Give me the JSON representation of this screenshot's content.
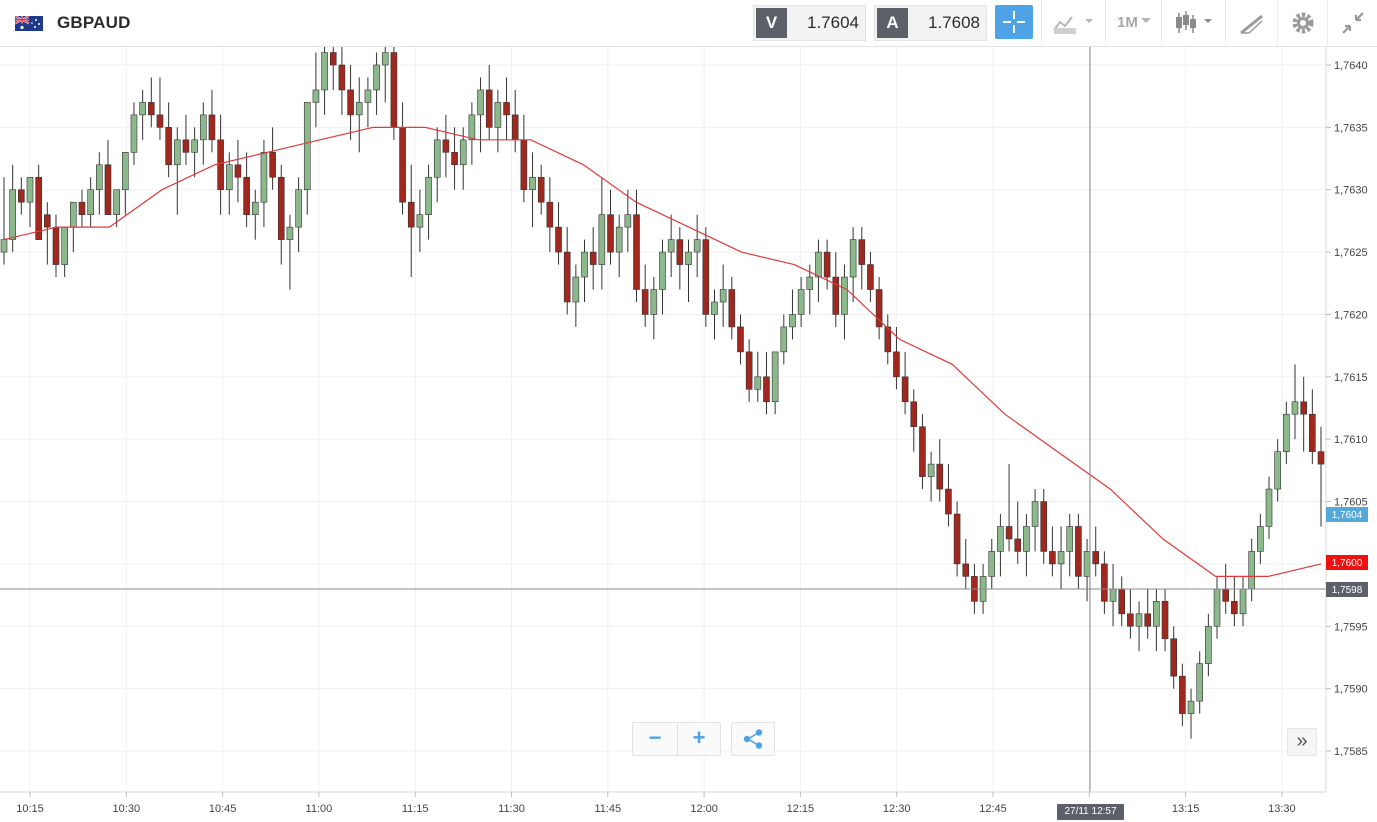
{
  "instrument": {
    "symbol": "GBPAUD",
    "flag_icon": "uk-australia-flag-icon"
  },
  "quote": {
    "sell_label": "V",
    "sell_price": "1.7604",
    "buy_label": "A",
    "buy_price": "1.7608"
  },
  "toolbar": {
    "crosshair_icon": "crosshair-icon",
    "chart_type_icon": "line-chart-icon",
    "timeframe": "1M",
    "candles_icon": "candlestick-icon",
    "draw_icon": "drawing-tools-icon",
    "settings_icon": "gear-icon",
    "collapse_icon": "collapse-icon"
  },
  "zoom": {
    "out_label": "−",
    "in_label": "+",
    "share_icon": "share-icon"
  },
  "expand_label": "»",
  "crosshair": {
    "date_label": "27/11 12:57",
    "price_label": "1,7598"
  },
  "badges": {
    "bid": "1,7604",
    "sma": "1,7600"
  },
  "colors": {
    "up": "#8cb98c",
    "down": "#a0281e",
    "sma": "#e03a3a",
    "bid_badge": "#56a8db",
    "sma_badge": "#ee1111",
    "cross_badge": "#5d6068"
  },
  "chart_data": {
    "type": "candlestick",
    "symbol": "GBPAUD",
    "interval": "1M",
    "y_ticks": [
      "1,7585",
      "1,7590",
      "1,7595",
      "1,7600",
      "1,7605",
      "1,7610",
      "1,7615",
      "1,7620",
      "1,7625",
      "1,7630",
      "1,7635",
      "1,7640"
    ],
    "x_ticks": [
      "10:15",
      "10:30",
      "10:45",
      "11:00",
      "11:15",
      "11:30",
      "11:45",
      "12:00",
      "12:15",
      "12:30",
      "12:45",
      "13:00",
      "13:15",
      "13:30"
    ],
    "ylim": [
      1.7582,
      1.7642
    ],
    "candles_approx_ohlc": [
      [
        1.7625,
        1.7631,
        1.7624,
        1.7626
      ],
      [
        1.7626,
        1.7632,
        1.7625,
        1.763
      ],
      [
        1.763,
        1.7631,
        1.7628,
        1.7629
      ],
      [
        1.7629,
        1.763,
        1.7627,
        1.7631
      ],
      [
        1.7631,
        1.7632,
        1.7629,
        1.7626
      ],
      [
        1.7628,
        1.7629,
        1.7624,
        1.7627
      ],
      [
        1.7627,
        1.7628,
        1.7623,
        1.7624
      ],
      [
        1.7624,
        1.7627,
        1.7623,
        1.7627
      ],
      [
        1.7627,
        1.7629,
        1.7625,
        1.7629
      ],
      [
        1.7629,
        1.763,
        1.7627,
        1.7628
      ],
      [
        1.7628,
        1.7631,
        1.7627,
        1.763
      ],
      [
        1.763,
        1.7633,
        1.7628,
        1.7632
      ],
      [
        1.7632,
        1.7634,
        1.763,
        1.7628
      ],
      [
        1.7628,
        1.763,
        1.7627,
        1.763
      ],
      [
        1.763,
        1.7632,
        1.7628,
        1.7633
      ],
      [
        1.7633,
        1.7637,
        1.7632,
        1.7636
      ],
      [
        1.7636,
        1.7638,
        1.7634,
        1.7637
      ],
      [
        1.7637,
        1.7639,
        1.7635,
        1.7636
      ],
      [
        1.7636,
        1.7639,
        1.7634,
        1.7635
      ],
      [
        1.7635,
        1.7637,
        1.7631,
        1.7632
      ],
      [
        1.7632,
        1.7635,
        1.7628,
        1.7634
      ],
      [
        1.7634,
        1.7636,
        1.7632,
        1.7633
      ],
      [
        1.7633,
        1.7635,
        1.7631,
        1.7634
      ],
      [
        1.7634,
        1.7637,
        1.7632,
        1.7636
      ],
      [
        1.7636,
        1.7638,
        1.7633,
        1.7634
      ],
      [
        1.7634,
        1.7636,
        1.7628,
        1.763
      ],
      [
        1.763,
        1.7633,
        1.7628,
        1.7632
      ],
      [
        1.7632,
        1.7634,
        1.7629,
        1.7631
      ],
      [
        1.7631,
        1.7633,
        1.7627,
        1.7628
      ],
      [
        1.7628,
        1.763,
        1.7626,
        1.7629
      ],
      [
        1.7629,
        1.7634,
        1.7627,
        1.7633
      ],
      [
        1.7633,
        1.7635,
        1.763,
        1.7631
      ],
      [
        1.7631,
        1.7632,
        1.7624,
        1.7626
      ],
      [
        1.7626,
        1.7628,
        1.7622,
        1.7627
      ],
      [
        1.7627,
        1.7631,
        1.7625,
        1.763
      ],
      [
        1.763,
        1.7634,
        1.7628,
        1.7637
      ],
      [
        1.7637,
        1.7641,
        1.7635,
        1.7638
      ],
      [
        1.7638,
        1.7642,
        1.7636,
        1.7641
      ],
      [
        1.7641,
        1.7643,
        1.7638,
        1.764
      ],
      [
        1.764,
        1.7642,
        1.7636,
        1.7638
      ],
      [
        1.7638,
        1.764,
        1.7634,
        1.7636
      ],
      [
        1.7636,
        1.7639,
        1.7633,
        1.7637
      ],
      [
        1.7637,
        1.7639,
        1.7635,
        1.7638
      ],
      [
        1.7638,
        1.7641,
        1.7636,
        1.764
      ],
      [
        1.764,
        1.7642,
        1.7637,
        1.7641
      ],
      [
        1.7641,
        1.7642,
        1.7634,
        1.7635
      ],
      [
        1.7635,
        1.7637,
        1.7628,
        1.7629
      ],
      [
        1.7629,
        1.7632,
        1.7623,
        1.7627
      ],
      [
        1.7627,
        1.763,
        1.7625,
        1.7628
      ],
      [
        1.7628,
        1.7632,
        1.7626,
        1.7631
      ],
      [
        1.7631,
        1.7635,
        1.7629,
        1.7634
      ],
      [
        1.7634,
        1.7636,
        1.7631,
        1.7633
      ],
      [
        1.7633,
        1.7635,
        1.763,
        1.7632
      ],
      [
        1.7632,
        1.7635,
        1.763,
        1.7634
      ],
      [
        1.7634,
        1.7637,
        1.7632,
        1.7636
      ],
      [
        1.7636,
        1.7639,
        1.7633,
        1.7638
      ],
      [
        1.7638,
        1.764,
        1.7634,
        1.7635
      ],
      [
        1.7635,
        1.7638,
        1.7633,
        1.7637
      ],
      [
        1.7637,
        1.7639,
        1.7634,
        1.7636
      ],
      [
        1.7636,
        1.7638,
        1.7633,
        1.7634
      ],
      [
        1.7634,
        1.7636,
        1.7629,
        1.763
      ],
      [
        1.763,
        1.7633,
        1.7627,
        1.7631
      ],
      [
        1.7631,
        1.7632,
        1.7628,
        1.7629
      ],
      [
        1.7629,
        1.7631,
        1.7625,
        1.7627
      ],
      [
        1.7627,
        1.7629,
        1.7624,
        1.7625
      ],
      [
        1.7625,
        1.7627,
        1.762,
        1.7621
      ],
      [
        1.7621,
        1.7624,
        1.7619,
        1.7623
      ],
      [
        1.7623,
        1.7626,
        1.7621,
        1.7625
      ],
      [
        1.7625,
        1.7627,
        1.7622,
        1.7624
      ],
      [
        1.7624,
        1.7631,
        1.7622,
        1.7628
      ],
      [
        1.7628,
        1.763,
        1.7624,
        1.7625
      ],
      [
        1.7625,
        1.7628,
        1.7623,
        1.7627
      ],
      [
        1.7627,
        1.763,
        1.7625,
        1.7628
      ],
      [
        1.7628,
        1.763,
        1.7621,
        1.7622
      ],
      [
        1.7622,
        1.7624,
        1.7619,
        1.762
      ],
      [
        1.762,
        1.7623,
        1.7618,
        1.7622
      ],
      [
        1.7622,
        1.7626,
        1.762,
        1.7625
      ],
      [
        1.7625,
        1.7628,
        1.7623,
        1.7626
      ],
      [
        1.7626,
        1.7627,
        1.7622,
        1.7624
      ],
      [
        1.7624,
        1.7626,
        1.7621,
        1.7625
      ],
      [
        1.7625,
        1.7628,
        1.7623,
        1.7626
      ],
      [
        1.7626,
        1.7627,
        1.7619,
        1.762
      ],
      [
        1.762,
        1.7622,
        1.7618,
        1.7621
      ],
      [
        1.7621,
        1.7624,
        1.7619,
        1.7622
      ],
      [
        1.7622,
        1.7623,
        1.7618,
        1.7619
      ],
      [
        1.7619,
        1.762,
        1.7616,
        1.7617
      ],
      [
        1.7617,
        1.7618,
        1.7613,
        1.7614
      ],
      [
        1.7614,
        1.7617,
        1.7613,
        1.7615
      ],
      [
        1.7615,
        1.7617,
        1.7612,
        1.7613
      ],
      [
        1.7613,
        1.7616,
        1.7612,
        1.7617
      ],
      [
        1.7617,
        1.762,
        1.7616,
        1.7619
      ],
      [
        1.7619,
        1.7622,
        1.7618,
        1.762
      ],
      [
        1.762,
        1.7623,
        1.7619,
        1.7622
      ],
      [
        1.7622,
        1.7624,
        1.762,
        1.7623
      ],
      [
        1.7623,
        1.7626,
        1.7621,
        1.7625
      ],
      [
        1.7625,
        1.7626,
        1.7622,
        1.7623
      ],
      [
        1.7623,
        1.7625,
        1.7619,
        1.762
      ],
      [
        1.762,
        1.7624,
        1.7618,
        1.7623
      ],
      [
        1.7623,
        1.7627,
        1.7621,
        1.7626
      ],
      [
        1.7626,
        1.7627,
        1.7622,
        1.7624
      ],
      [
        1.7624,
        1.7625,
        1.7621,
        1.7622
      ],
      [
        1.7622,
        1.7623,
        1.7618,
        1.7619
      ],
      [
        1.7619,
        1.762,
        1.7616,
        1.7617
      ],
      [
        1.7617,
        1.7619,
        1.7614,
        1.7615
      ],
      [
        1.7615,
        1.7617,
        1.7612,
        1.7613
      ],
      [
        1.7613,
        1.7614,
        1.7609,
        1.7611
      ],
      [
        1.7611,
        1.7612,
        1.7606,
        1.7607
      ],
      [
        1.7607,
        1.7609,
        1.7605,
        1.7608
      ],
      [
        1.7608,
        1.761,
        1.7605,
        1.7606
      ],
      [
        1.7606,
        1.7608,
        1.7603,
        1.7604
      ],
      [
        1.7604,
        1.7605,
        1.7599,
        1.76
      ],
      [
        1.76,
        1.7602,
        1.7598,
        1.7599
      ],
      [
        1.7599,
        1.76,
        1.7596,
        1.7597
      ],
      [
        1.7597,
        1.76,
        1.7596,
        1.7599
      ],
      [
        1.7599,
        1.7602,
        1.7598,
        1.7601
      ],
      [
        1.7601,
        1.7604,
        1.7599,
        1.7603
      ],
      [
        1.7603,
        1.7608,
        1.7601,
        1.7602
      ],
      [
        1.7602,
        1.7605,
        1.76,
        1.7601
      ],
      [
        1.7601,
        1.7604,
        1.7599,
        1.7603
      ],
      [
        1.7603,
        1.7606,
        1.7601,
        1.7605
      ],
      [
        1.7605,
        1.7606,
        1.76,
        1.7601
      ],
      [
        1.7601,
        1.7603,
        1.7599,
        1.76
      ],
      [
        1.76,
        1.7603,
        1.7598,
        1.7601
      ],
      [
        1.7601,
        1.7604,
        1.7599,
        1.7603
      ],
      [
        1.7603,
        1.7604,
        1.7598,
        1.7599
      ],
      [
        1.7599,
        1.7602,
        1.7597,
        1.7601
      ],
      [
        1.7601,
        1.7603,
        1.7599,
        1.76
      ],
      [
        1.76,
        1.7601,
        1.7596,
        1.7597
      ],
      [
        1.7597,
        1.76,
        1.7595,
        1.7598
      ],
      [
        1.7598,
        1.7599,
        1.7595,
        1.7596
      ],
      [
        1.7596,
        1.7598,
        1.7594,
        1.7595
      ],
      [
        1.7595,
        1.7597,
        1.7593,
        1.7596
      ],
      [
        1.7596,
        1.7598,
        1.7594,
        1.7595
      ],
      [
        1.7595,
        1.7598,
        1.7593,
        1.7597
      ],
      [
        1.7597,
        1.7598,
        1.7593,
        1.7594
      ],
      [
        1.7594,
        1.7595,
        1.759,
        1.7591
      ],
      [
        1.7591,
        1.7592,
        1.7587,
        1.7588
      ],
      [
        1.7588,
        1.759,
        1.7586,
        1.7589
      ],
      [
        1.7589,
        1.7593,
        1.7588,
        1.7592
      ],
      [
        1.7592,
        1.7596,
        1.7591,
        1.7595
      ],
      [
        1.7595,
        1.7599,
        1.7594,
        1.7598
      ],
      [
        1.7598,
        1.76,
        1.7596,
        1.7597
      ],
      [
        1.7597,
        1.7599,
        1.7595,
        1.7596
      ],
      [
        1.7596,
        1.7599,
        1.7595,
        1.7598
      ],
      [
        1.7598,
        1.7602,
        1.7597,
        1.7601
      ],
      [
        1.7601,
        1.7604,
        1.76,
        1.7603
      ],
      [
        1.7603,
        1.7607,
        1.7602,
        1.7606
      ],
      [
        1.7606,
        1.761,
        1.7605,
        1.7609
      ],
      [
        1.7609,
        1.7613,
        1.7608,
        1.7612
      ],
      [
        1.7612,
        1.7616,
        1.761,
        1.7613
      ],
      [
        1.7613,
        1.7615,
        1.7609,
        1.7612
      ],
      [
        1.7612,
        1.7614,
        1.7608,
        1.7609
      ],
      [
        1.7609,
        1.7611,
        1.7603,
        1.7608
      ]
    ],
    "sma": [
      1.7626,
      1.7627,
      1.7627,
      1.763,
      1.7632,
      1.7633,
      1.7634,
      1.7635,
      1.7635,
      1.7634,
      1.7634,
      1.7632,
      1.7629,
      1.7627,
      1.7625,
      1.7624,
      1.7622,
      1.7618,
      1.7616,
      1.7612,
      1.7609,
      1.7606,
      1.7602,
      1.7599,
      1.7599,
      1.76
    ]
  }
}
